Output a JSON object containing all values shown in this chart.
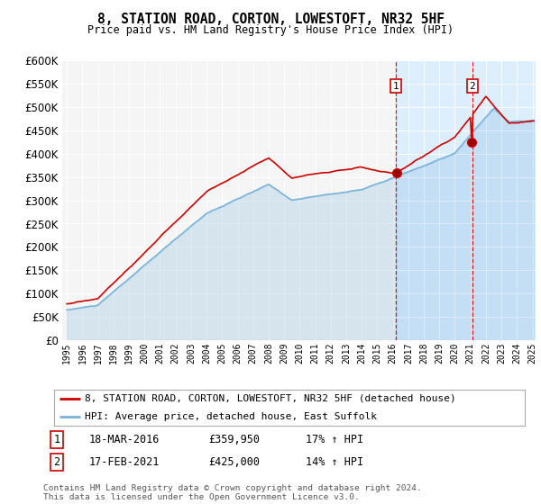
{
  "title": "8, STATION ROAD, CORTON, LOWESTOFT, NR32 5HF",
  "subtitle": "Price paid vs. HM Land Registry's House Price Index (HPI)",
  "ylim": [
    0,
    600000
  ],
  "ytick_values": [
    0,
    50000,
    100000,
    150000,
    200000,
    250000,
    300000,
    350000,
    400000,
    450000,
    500000,
    550000,
    600000
  ],
  "sale1_date": 2016.21,
  "sale1_price": 359950,
  "sale2_date": 2021.12,
  "sale2_price": 425000,
  "hpi_color": "#7ab4d8",
  "sale_color": "#cc0000",
  "legend_line1": "8, STATION ROAD, CORTON, LOWESTOFT, NR32 5HF (detached house)",
  "legend_line2": "HPI: Average price, detached house, East Suffolk",
  "footnote": "Contains HM Land Registry data © Crown copyright and database right 2024.\nThis data is licensed under the Open Government Licence v3.0.",
  "background_color": "#ffffff",
  "plot_bg_color": "#f5f5f5",
  "shaded_color": "#ddeeff",
  "grid_color": "#ffffff"
}
